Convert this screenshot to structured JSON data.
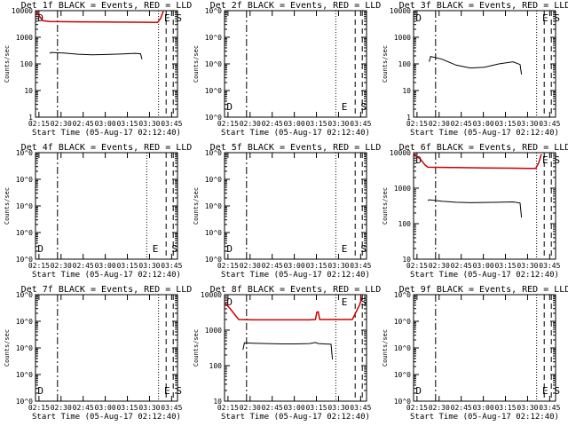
{
  "chart_data": [
    {
      "type": "line",
      "title": "Det 1f BLACK = Events, RED = LLD",
      "xlabel": "Start Time (05-Aug-17 02:12:40)",
      "ylabel": "Counts/sec",
      "yscale": "log",
      "ylim": [
        1,
        10000
      ],
      "ytick_labels": [
        "1",
        "10",
        "100",
        "1000",
        "10000"
      ],
      "xtick_labels": [
        "02:15",
        "02:30",
        "02:45",
        "03:00",
        "03:15",
        "03:30",
        "03:45"
      ],
      "markers": [
        {
          "label": "D",
          "x": "02:14"
        },
        {
          "label": "E",
          "x": "03:40"
        },
        {
          "label": "S",
          "x": "03:48"
        }
      ],
      "series": [
        {
          "name": "LLD",
          "color": "#cc0000",
          "x": [
            0.0,
            0.02,
            0.05,
            0.1,
            0.3,
            0.5,
            0.7,
            0.8,
            0.86,
            0.88,
            0.9
          ],
          "values": [
            9500,
            7000,
            4200,
            3900,
            3800,
            3750,
            3700,
            3650,
            3600,
            5000,
            9500
          ]
        },
        {
          "name": "Events",
          "color": "#000000",
          "x": [
            0.1,
            0.11,
            0.2,
            0.3,
            0.4,
            0.5,
            0.6,
            0.7,
            0.74,
            0.75
          ],
          "values": [
            250,
            270,
            255,
            230,
            220,
            225,
            235,
            250,
            240,
            150
          ]
        }
      ]
    },
    {
      "type": "line",
      "title": "Det 2f BLACK = Events, RED = LLD",
      "xlabel": "Start Time (05-Aug-17 02:12:40)",
      "ylabel": "Counts/sec",
      "yscale": "log",
      "ytick_labels": [
        "10^0",
        "10^0",
        "10^0",
        "10^0",
        "10^0"
      ],
      "xtick_labels": [
        "02:15",
        "02:30",
        "02:45",
        "03:00",
        "03:15",
        "03:30",
        "03:45"
      ],
      "markers": [
        {
          "label": "D",
          "x": "02:14"
        },
        {
          "label": "E",
          "x": "03:32"
        },
        {
          "label": "S",
          "x": "03:45"
        }
      ],
      "series": []
    },
    {
      "type": "line",
      "title": "Det 3f BLACK = Events, RED = LLD",
      "xlabel": "Start Time (05-Aug-17 02:12:40)",
      "ylabel": "Counts/sec",
      "yscale": "log",
      "ylim": [
        1,
        10000
      ],
      "ytick_labels": [
        "1",
        "10",
        "100",
        "1000",
        "10000"
      ],
      "xtick_labels": [
        "02:15",
        "02:30",
        "02:45",
        "03:00",
        "03:15",
        "03:30",
        "03:45"
      ],
      "markers": [
        {
          "label": "D",
          "x": "02:14"
        },
        {
          "label": "E",
          "x": "03:40"
        },
        {
          "label": "S",
          "x": "03:48"
        }
      ],
      "series": [
        {
          "name": "Events",
          "color": "#000000",
          "x": [
            0.11,
            0.12,
            0.2,
            0.3,
            0.4,
            0.5,
            0.6,
            0.7,
            0.75,
            0.76
          ],
          "values": [
            120,
            190,
            150,
            90,
            70,
            75,
            100,
            120,
            95,
            40
          ]
        }
      ]
    },
    {
      "type": "line",
      "title": "Det 4f BLACK = Events, RED = LLD",
      "xlabel": "Start Time (05-Aug-17 02:12:40)",
      "ylabel": "Counts/sec",
      "yscale": "log",
      "ytick_labels": [
        "10^0",
        "10^0",
        "10^0",
        "10^0",
        "10^0"
      ],
      "xtick_labels": [
        "02:15",
        "02:30",
        "02:45",
        "03:00",
        "03:15",
        "03:30",
        "03:45"
      ],
      "markers": [
        {
          "label": "D",
          "x": "02:14"
        },
        {
          "label": "E",
          "x": "03:32"
        },
        {
          "label": "S",
          "x": "03:45"
        }
      ],
      "series": []
    },
    {
      "type": "line",
      "title": "Det 5f BLACK = Events, RED = LLD",
      "xlabel": "Start Time (05-Aug-17 02:12:40)",
      "ylabel": "Counts/sec",
      "yscale": "log",
      "ytick_labels": [
        "10^0",
        "10^0",
        "10^0",
        "10^0",
        "10^0"
      ],
      "xtick_labels": [
        "02:15",
        "02:30",
        "02:45",
        "03:00",
        "03:15",
        "03:30",
        "03:45"
      ],
      "markers": [
        {
          "label": "D",
          "x": "02:14"
        },
        {
          "label": "E",
          "x": "03:32"
        },
        {
          "label": "S",
          "x": "03:45"
        }
      ],
      "series": []
    },
    {
      "type": "line",
      "title": "Det 6f BLACK = Events, RED = LLD",
      "xlabel": "Start Time (05-Aug-17 02:12:40)",
      "ylabel": "Counts/sec",
      "yscale": "log",
      "ylim": [
        10,
        10000
      ],
      "ytick_labels": [
        "10",
        "100",
        "1000",
        "10000"
      ],
      "xtick_labels": [
        "02:15",
        "02:30",
        "02:45",
        "03:00",
        "03:15",
        "03:30",
        "03:45"
      ],
      "markers": [
        {
          "label": "D",
          "x": "02:14"
        },
        {
          "label": "E",
          "x": "03:40"
        },
        {
          "label": "S",
          "x": "03:48"
        }
      ],
      "series": [
        {
          "name": "LLD",
          "color": "#cc0000",
          "x": [
            0.0,
            0.05,
            0.08,
            0.1,
            0.3,
            0.5,
            0.7,
            0.8,
            0.86,
            0.88,
            0.9
          ],
          "values": [
            9000,
            6500,
            4500,
            3900,
            3800,
            3700,
            3650,
            3600,
            3600,
            5000,
            9000
          ]
        },
        {
          "name": "Events",
          "color": "#000000",
          "x": [
            0.1,
            0.11,
            0.2,
            0.3,
            0.4,
            0.5,
            0.6,
            0.7,
            0.75,
            0.76
          ],
          "values": [
            450,
            470,
            430,
            400,
            390,
            395,
            400,
            410,
            380,
            150
          ]
        }
      ]
    },
    {
      "type": "line",
      "title": "Det 7f BLACK = Events, RED = LLD",
      "xlabel": "Start Time (05-Aug-17 02:12:40)",
      "ylabel": "Counts/sec",
      "yscale": "log",
      "ytick_labels": [
        "10^0",
        "10^0",
        "10^0",
        "10^0",
        "10^0"
      ],
      "xtick_labels": [
        "02:15",
        "02:30",
        "02:45",
        "03:00",
        "03:15",
        "03:30",
        "03:45"
      ],
      "markers": [
        {
          "label": "D",
          "x": "02:14"
        },
        {
          "label": "E",
          "x": "03:40"
        },
        {
          "label": "S",
          "x": "03:48"
        }
      ],
      "series": []
    },
    {
      "type": "line",
      "title": "Det 8f BLACK = Events, RED = LLD",
      "xlabel": "Start Time (05-Aug-17 02:12:40)",
      "ylabel": "Counts/sec",
      "yscale": "log",
      "ylim": [
        10,
        10000
      ],
      "ytick_labels": [
        "10",
        "100",
        "1000",
        "10000"
      ],
      "xtick_labels": [
        "02:15",
        "02:30",
        "02:45",
        "03:00",
        "03:15",
        "03:30",
        "03:45"
      ],
      "markers": [
        {
          "label": "D",
          "x": "02:14"
        },
        {
          "label": "E",
          "x": "03:32"
        },
        {
          "label": "S",
          "x": "03:45"
        }
      ],
      "series": [
        {
          "name": "LLD",
          "color": "#cc0000",
          "x": [
            0.0,
            0.04,
            0.08,
            0.1,
            0.2,
            0.4,
            0.6,
            0.64,
            0.65,
            0.66,
            0.67,
            0.8,
            0.9,
            0.95,
            0.97
          ],
          "values": [
            6000,
            4000,
            2500,
            2000,
            1950,
            1950,
            1950,
            2000,
            3200,
            3300,
            2000,
            2000,
            2000,
            5000,
            9000
          ]
        },
        {
          "name": "Events",
          "color": "#000000",
          "x": [
            0.13,
            0.14,
            0.2,
            0.3,
            0.4,
            0.5,
            0.6,
            0.64,
            0.66,
            0.7,
            0.75,
            0.76
          ],
          "values": [
            280,
            440,
            430,
            420,
            410,
            410,
            420,
            450,
            420,
            410,
            400,
            150
          ]
        }
      ]
    },
    {
      "type": "line",
      "title": "Det 9f BLACK = Events, RED = LLD",
      "xlabel": "Start Time (05-Aug-17 02:12:40)",
      "ylabel": "Counts/sec",
      "yscale": "log",
      "ytick_labels": [
        "10^0",
        "10^0",
        "10^0",
        "10^0",
        "10^0"
      ],
      "xtick_labels": [
        "02:15",
        "02:30",
        "02:45",
        "03:00",
        "03:15",
        "03:30",
        "03:45"
      ],
      "markers": [
        {
          "label": "D",
          "x": "02:14"
        },
        {
          "label": "E",
          "x": "03:40"
        },
        {
          "label": "S",
          "x": "03:48"
        }
      ],
      "series": []
    }
  ]
}
